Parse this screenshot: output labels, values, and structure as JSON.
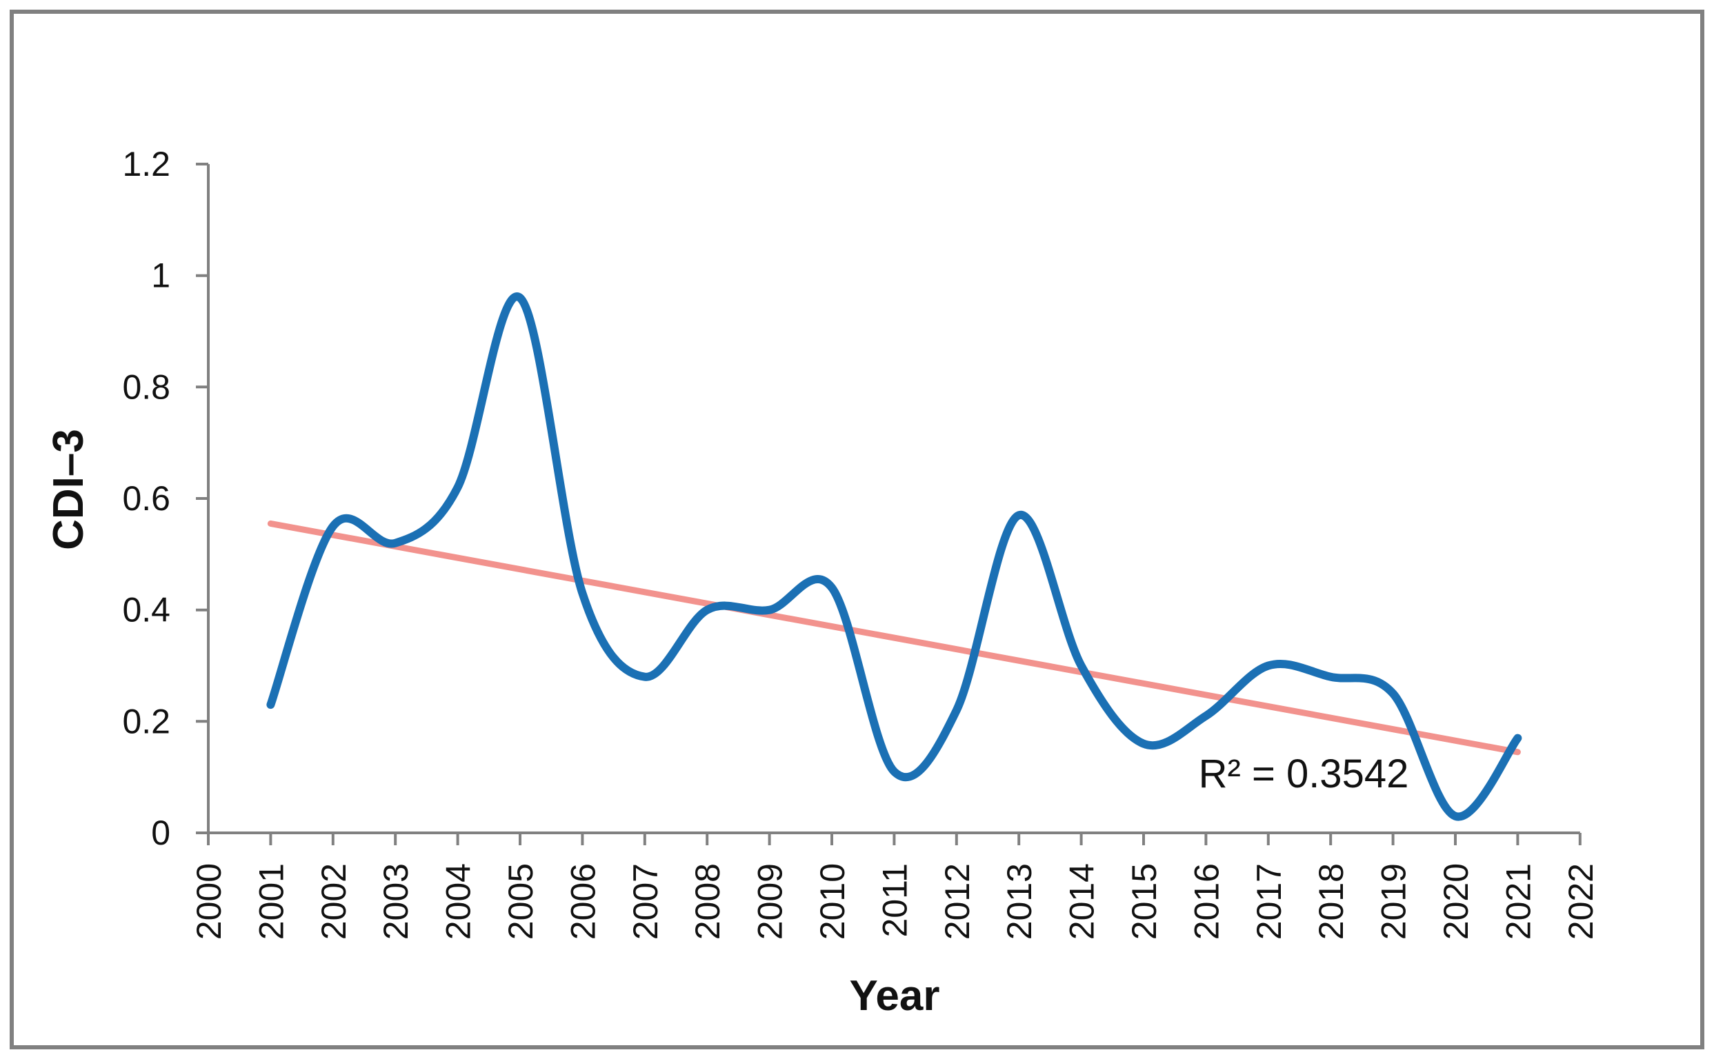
{
  "figure": {
    "background": "#ffffff",
    "border_color": "#808080"
  },
  "chart_data": {
    "type": "line",
    "title": "",
    "xlabel": "Year",
    "ylabel": "CDI–3",
    "grid": false,
    "legend_position": "none",
    "axis_color": "#808080",
    "text_color": "#111111",
    "xlim": [
      2000,
      2022
    ],
    "ylim": [
      0,
      1.2
    ],
    "x": [
      2001,
      2002,
      2003,
      2004,
      2005,
      2006,
      2007,
      2008,
      2009,
      2010,
      2011,
      2012,
      2013,
      2014,
      2015,
      2016,
      2017,
      2018,
      2019,
      2020,
      2021
    ],
    "series": [
      {
        "name": "CDI-3",
        "color": "#1b70b4",
        "line_width": 12,
        "smoothing": "spline",
        "values": [
          0.23,
          0.55,
          0.52,
          0.62,
          0.96,
          0.43,
          0.28,
          0.4,
          0.4,
          0.44,
          0.11,
          0.22,
          0.57,
          0.3,
          0.16,
          0.21,
          0.3,
          0.28,
          0.25,
          0.03,
          0.17
        ]
      }
    ],
    "trendline": {
      "type": "linear",
      "color": "#f2928d",
      "line_width": 9,
      "x_start": 2001,
      "y_start": 0.555,
      "x_end": 2021,
      "y_end": 0.145,
      "r_squared": 0.3542,
      "r_squared_label": "R² = 0.3542"
    },
    "x_ticks": [
      {
        "value": 2000,
        "label": "2000"
      },
      {
        "value": 2001,
        "label": "2001"
      },
      {
        "value": 2002,
        "label": "2002"
      },
      {
        "value": 2003,
        "label": "2003"
      },
      {
        "value": 2004,
        "label": "2004"
      },
      {
        "value": 2005,
        "label": "2005"
      },
      {
        "value": 2006,
        "label": "2006"
      },
      {
        "value": 2007,
        "label": "2007"
      },
      {
        "value": 2008,
        "label": "2008"
      },
      {
        "value": 2009,
        "label": "2009"
      },
      {
        "value": 2010,
        "label": "2010"
      },
      {
        "value": 2011,
        "label": "2011"
      },
      {
        "value": 2012,
        "label": "2012"
      },
      {
        "value": 2013,
        "label": "2013"
      },
      {
        "value": 2014,
        "label": "2014"
      },
      {
        "value": 2015,
        "label": "2015"
      },
      {
        "value": 2016,
        "label": "2016"
      },
      {
        "value": 2017,
        "label": "2017"
      },
      {
        "value": 2018,
        "label": "2018"
      },
      {
        "value": 2019,
        "label": "2019"
      },
      {
        "value": 2020,
        "label": "2020"
      },
      {
        "value": 2021,
        "label": "2021"
      },
      {
        "value": 2022,
        "label": "2022"
      }
    ],
    "y_ticks": [
      {
        "value": 0,
        "label": "0"
      },
      {
        "value": 0.2,
        "label": "0.2"
      },
      {
        "value": 0.4,
        "label": "0.4"
      },
      {
        "value": 0.6,
        "label": "0.6"
      },
      {
        "value": 0.8,
        "label": "0.8"
      },
      {
        "value": 1,
        "label": "1"
      },
      {
        "value": 1.2,
        "label": "1.2"
      }
    ]
  }
}
